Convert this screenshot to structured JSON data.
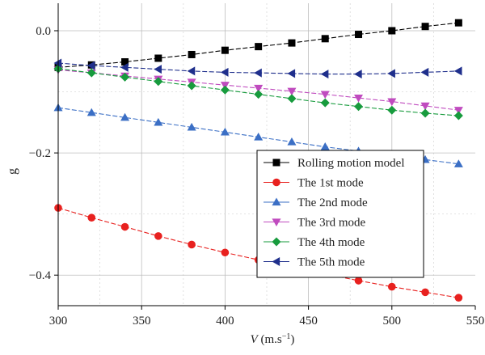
{
  "chart_data": {
    "type": "line",
    "title": "",
    "xlabel_italic": "V",
    "xlabel_rest": " (m.s",
    "xlabel_sup": "−1",
    "xlabel_close": ")",
    "ylabel": "g",
    "xlim": [
      300,
      550
    ],
    "ylim": [
      -0.45,
      0.045
    ],
    "xticks": [
      300,
      350,
      400,
      450,
      500,
      550
    ],
    "xtick_labels": [
      "300",
      "350",
      "400",
      "450",
      "500",
      "550"
    ],
    "yticks": [
      0.0,
      -0.2,
      -0.4
    ],
    "ytick_labels": [
      "0.0",
      "−0.2",
      "−0.4"
    ],
    "grid": true,
    "legend_position": "bottom-right",
    "x": [
      300,
      320,
      340,
      360,
      380,
      400,
      420,
      440,
      460,
      480,
      500,
      520,
      540
    ],
    "series": [
      {
        "name": "Rolling motion model",
        "color": "#000000",
        "marker": "square",
        "values": [
          -0.06,
          -0.056,
          -0.051,
          -0.045,
          -0.039,
          -0.032,
          -0.026,
          -0.02,
          -0.013,
          -0.006,
          0.0,
          0.007,
          0.013
        ]
      },
      {
        "name": "The 1st mode",
        "color": "#e8211f",
        "marker": "circle",
        "values": [
          -0.29,
          -0.306,
          -0.321,
          -0.336,
          -0.35,
          -0.363,
          -0.375,
          -0.387,
          -0.398,
          -0.409,
          -0.419,
          -0.428,
          -0.437
        ]
      },
      {
        "name": "The 2nd mode",
        "color": "#3b6fc5",
        "marker": "triangle-up",
        "values": [
          -0.126,
          -0.134,
          -0.142,
          -0.15,
          -0.158,
          -0.166,
          -0.174,
          -0.182,
          -0.19,
          -0.197,
          -0.204,
          -0.211,
          -0.218
        ]
      },
      {
        "name": "The 3rd mode",
        "color": "#c04bbf",
        "marker": "triangle-down",
        "values": [
          -0.064,
          -0.069,
          -0.074,
          -0.079,
          -0.084,
          -0.089,
          -0.094,
          -0.099,
          -0.104,
          -0.11,
          -0.116,
          -0.123,
          -0.13
        ]
      },
      {
        "name": "The 4th mode",
        "color": "#179b3d",
        "marker": "diamond",
        "values": [
          -0.062,
          -0.069,
          -0.076,
          -0.083,
          -0.09,
          -0.097,
          -0.104,
          -0.111,
          -0.118,
          -0.124,
          -0.13,
          -0.135,
          -0.139
        ]
      },
      {
        "name": "The 5th mode",
        "color": "#1f2f8c",
        "marker": "triangle-left",
        "values": [
          -0.053,
          -0.057,
          -0.06,
          -0.063,
          -0.066,
          -0.068,
          -0.069,
          -0.07,
          -0.071,
          -0.071,
          -0.07,
          -0.068,
          -0.066
        ]
      }
    ]
  }
}
